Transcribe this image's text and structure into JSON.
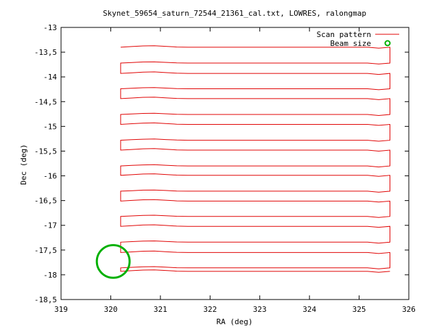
{
  "chart_data": {
    "type": "line",
    "title": "Skynet_59654_saturn_72544_21361_cal.txt, LOWRES, ralongmap",
    "xlabel": "RA (deg)",
    "ylabel": "Dec (deg)",
    "xlim": [
      319,
      326
    ],
    "ylim": [
      -18.5,
      -13
    ],
    "xticks": [
      319,
      320,
      321,
      322,
      323,
      324,
      325,
      326
    ],
    "xtick_labels": [
      "319",
      "320",
      "321",
      "322",
      "323",
      "324",
      "325",
      "326"
    ],
    "yticks": [
      -13,
      -13.5,
      -14,
      -14.5,
      -15,
      -15.5,
      -16,
      -16.5,
      -17,
      -17.5,
      -18,
      -18.5
    ],
    "ytick_labels": [
      "-13",
      "-13,5",
      "-14",
      "-14,5",
      "-15",
      "-15,5",
      "-16",
      "-16,5",
      "-17",
      "-17,5",
      "-18",
      "-18,5"
    ],
    "grid": false,
    "legend_position": "top-right",
    "series": [
      {
        "name": "Scan pattern",
        "color": "#e00000",
        "pattern": "raster scan, alternating rows",
        "ra_start": 320.2,
        "ra_end": 325.62,
        "rows_dec": [
          -13.4,
          -13.72,
          -13.93,
          -14.24,
          -14.44,
          -14.76,
          -14.96,
          -15.28,
          -15.48,
          -15.8,
          -15.99,
          -16.31,
          -16.51,
          -16.82,
          -17.02,
          -17.34,
          -17.55,
          -17.86,
          -17.93
        ]
      },
      {
        "name": "Beam size",
        "color": "#00b000",
        "shape": "circle",
        "center": [
          320.05,
          -17.73
        ],
        "radius_deg": 0.33
      }
    ]
  }
}
